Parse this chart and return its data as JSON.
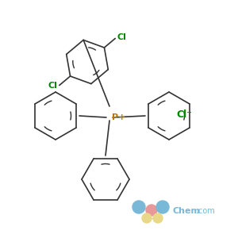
{
  "background_color": "#ffffff",
  "bond_color": "#333333",
  "cl_color": "#008800",
  "p_color": "#b87800",
  "cl_ion_color": "#008800",
  "p_label": "P+",
  "cl_label_1": "Cl",
  "cl_label_2": "Cl",
  "cl_ion_label": "Cl⁻",
  "logo_chem_color": "#a0c8e0",
  "logo_com_color": "#a0c8e0"
}
